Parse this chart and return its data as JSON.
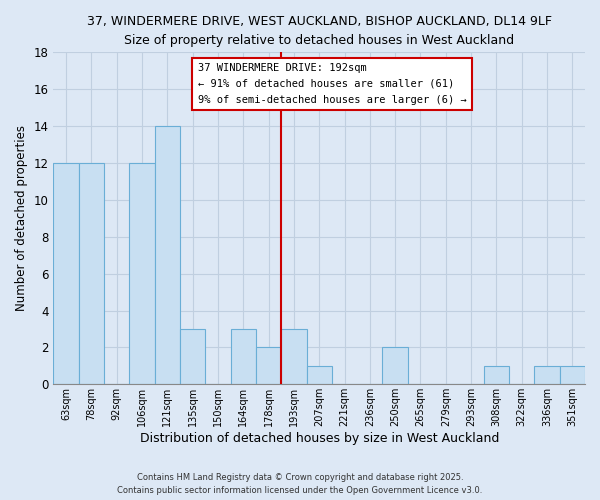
{
  "title_line1": "37, WINDERMERE DRIVE, WEST AUCKLAND, BISHOP AUCKLAND, DL14 9LF",
  "title_line2": "Size of property relative to detached houses in West Auckland",
  "xlabel": "Distribution of detached houses by size in West Auckland",
  "ylabel": "Number of detached properties",
  "bar_labels": [
    "63sqm",
    "78sqm",
    "92sqm",
    "106sqm",
    "121sqm",
    "135sqm",
    "150sqm",
    "164sqm",
    "178sqm",
    "193sqm",
    "207sqm",
    "221sqm",
    "236sqm",
    "250sqm",
    "265sqm",
    "279sqm",
    "293sqm",
    "308sqm",
    "322sqm",
    "336sqm",
    "351sqm"
  ],
  "bar_values": [
    12,
    12,
    0,
    12,
    14,
    3,
    0,
    3,
    2,
    3,
    1,
    0,
    0,
    2,
    0,
    0,
    0,
    1,
    0,
    1,
    1
  ],
  "bar_color": "#c8dff2",
  "bar_edge_color": "#6aaed6",
  "vline_x_index": 9,
  "vline_color": "#cc0000",
  "annotation_title": "37 WINDERMERE DRIVE: 192sqm",
  "annotation_line1": "← 91% of detached houses are smaller (61)",
  "annotation_line2": "9% of semi-detached houses are larger (6) →",
  "annotation_box_color": "#ffffff",
  "annotation_box_edge": "#cc0000",
  "ylim": [
    0,
    18
  ],
  "yticks": [
    0,
    2,
    4,
    6,
    8,
    10,
    12,
    14,
    16,
    18
  ],
  "footnote1": "Contains HM Land Registry data © Crown copyright and database right 2025.",
  "footnote2": "Contains public sector information licensed under the Open Government Licence v3.0.",
  "bg_color": "#dde8f5",
  "plot_bg_color": "#dde8f5",
  "grid_color": "#c0cfe0"
}
